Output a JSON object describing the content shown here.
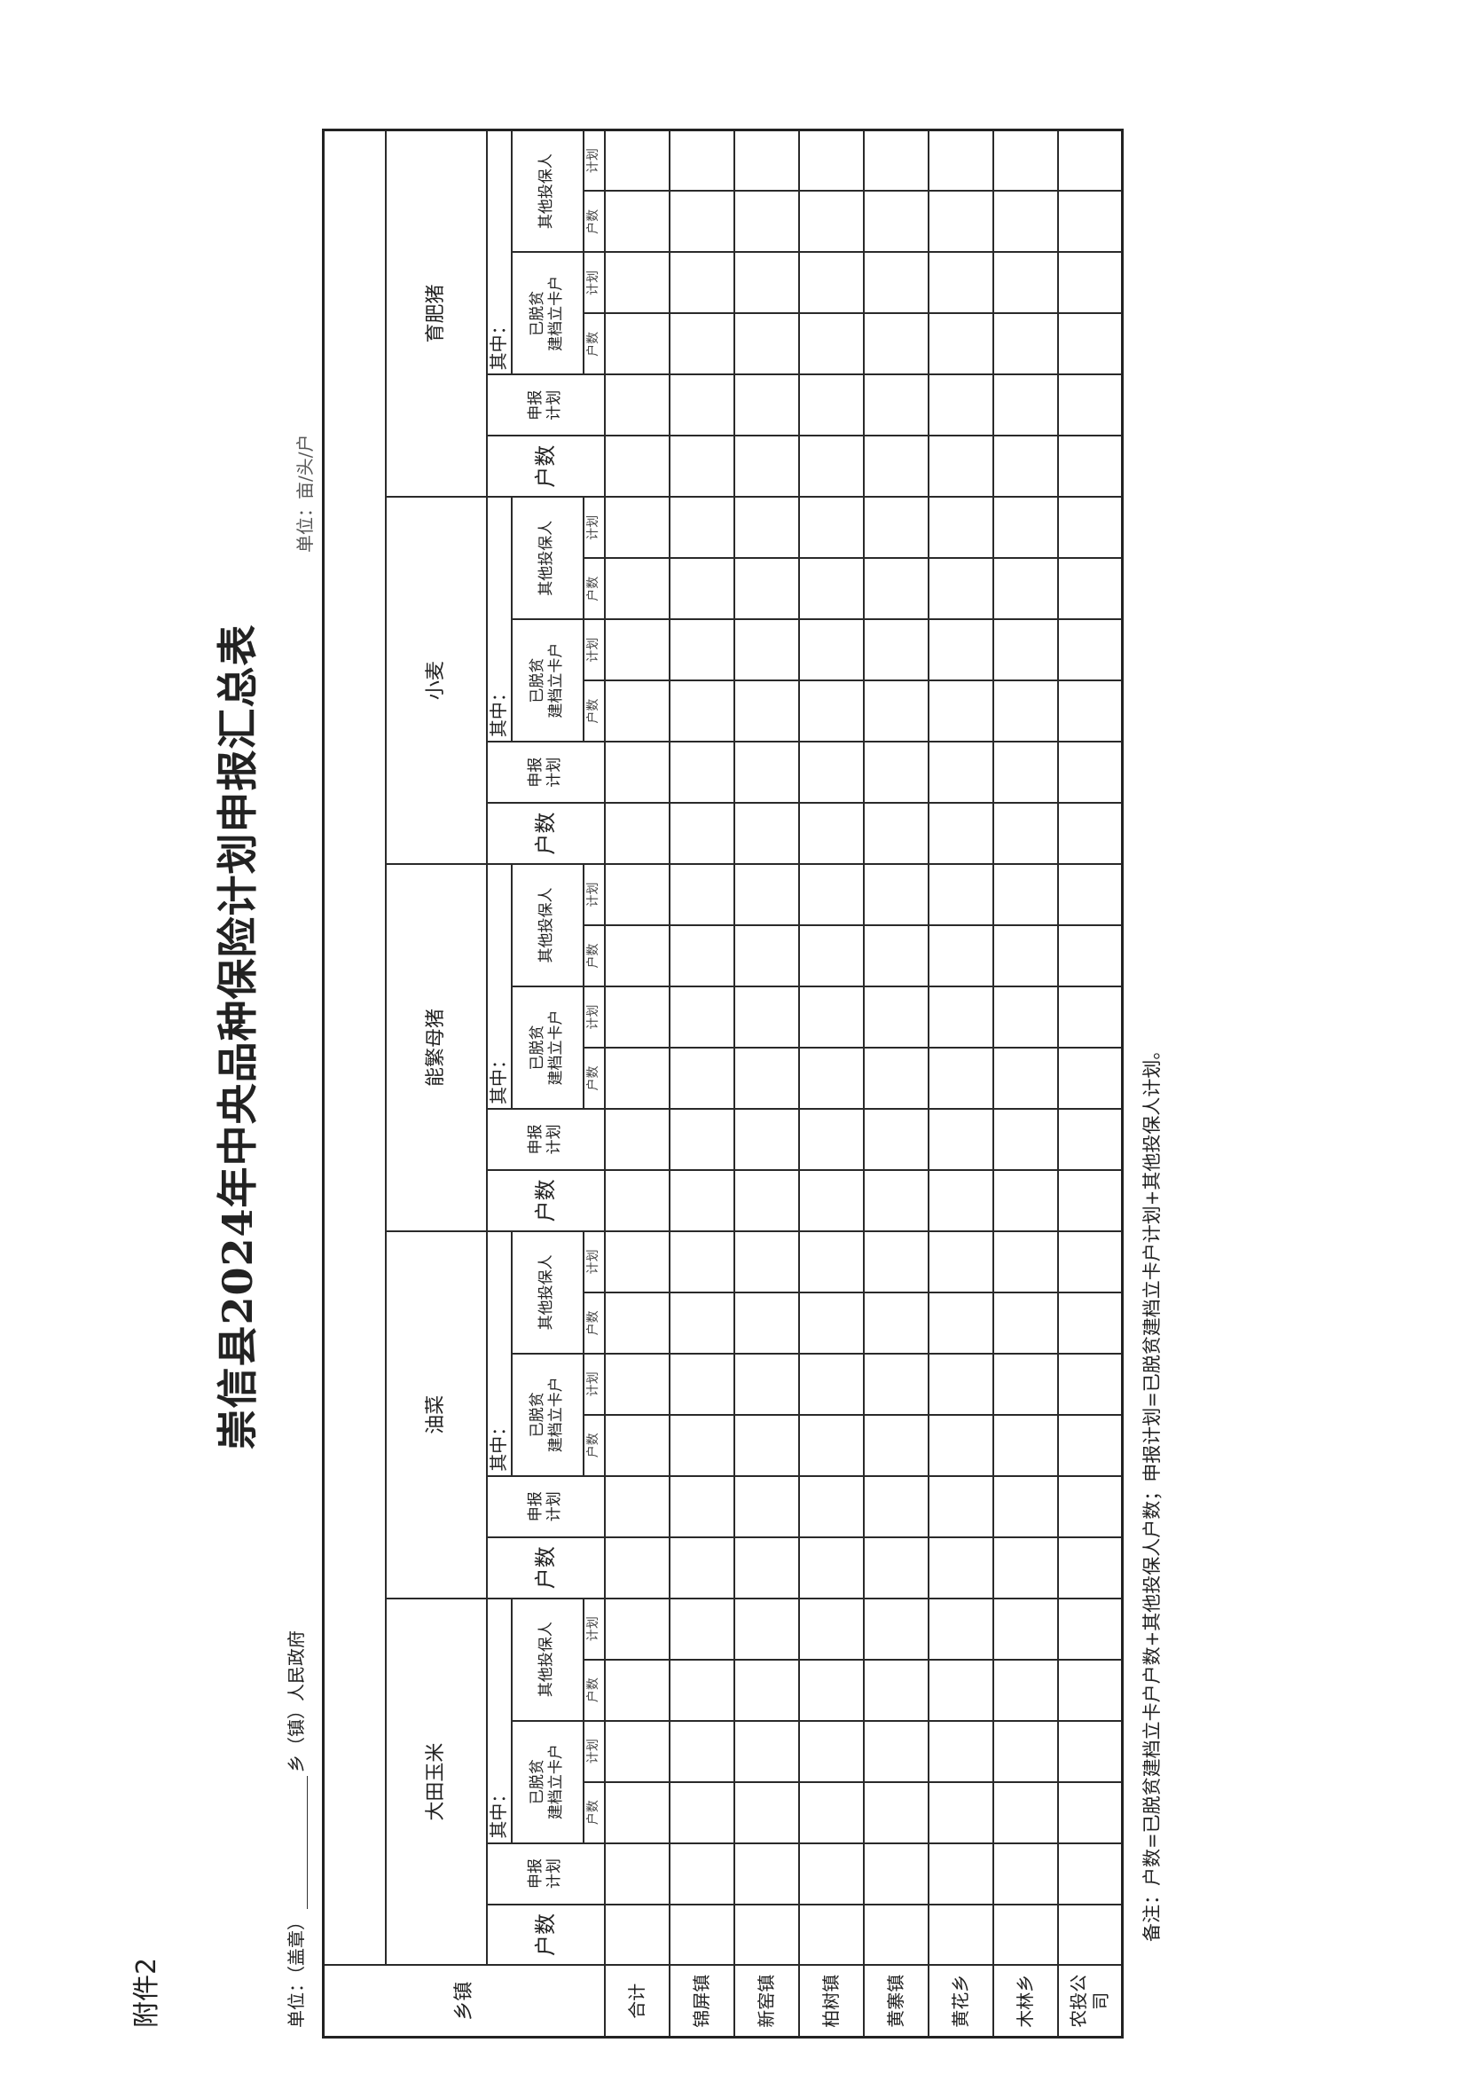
{
  "annex": "附件2",
  "unit_left": {
    "prefix": "单位：（盖章）",
    "suffix": "乡（镇）人民政府"
  },
  "unit_right": "单位：亩/头/户",
  "title": "崇信县2024年中央品种保险计划申报汇总表",
  "table": {
    "township_header": "乡镇",
    "crops": [
      "大田玉米",
      "油菜",
      "能繁母猪",
      "小麦",
      "育肥猪"
    ],
    "households": "户数",
    "declared_plan": "申报\n计划",
    "among": "其中：",
    "groups": [
      "已脱贫\n建档立卡户",
      "其他投保人"
    ],
    "leaf": [
      "户数",
      "计划"
    ],
    "rows": [
      "合计",
      "锦屏镇",
      "新窑镇",
      "柏树镇",
      "黄寨镇",
      "黄花乡",
      "木林乡",
      "农投公司"
    ]
  },
  "note": "备注：户数=已脱贫建档立卡户户数+其他投保人户数；申报计划=已脱贫建档立卡户计划+其他投保人计划。"
}
